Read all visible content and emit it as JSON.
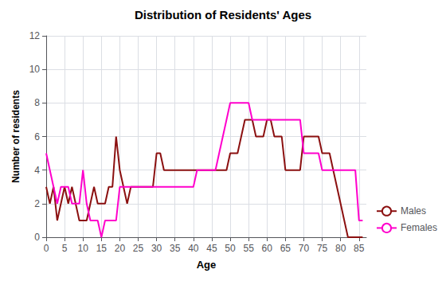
{
  "chart_data": {
    "type": "line",
    "title": "Distribution of Residents' Ages",
    "xlabel": "Age",
    "ylabel": "Number of residents",
    "x": [
      0,
      1,
      2,
      3,
      4,
      5,
      6,
      7,
      8,
      9,
      10,
      11,
      12,
      13,
      14,
      15,
      16,
      17,
      18,
      19,
      20,
      21,
      22,
      23,
      24,
      25,
      26,
      27,
      28,
      29,
      30,
      31,
      32,
      33,
      34,
      35,
      36,
      37,
      38,
      39,
      40,
      41,
      42,
      43,
      44,
      45,
      46,
      47,
      48,
      49,
      50,
      51,
      52,
      53,
      54,
      55,
      56,
      57,
      58,
      59,
      60,
      61,
      62,
      63,
      64,
      65,
      66,
      67,
      68,
      69,
      70,
      71,
      72,
      73,
      74,
      75,
      76,
      77,
      78,
      79,
      80,
      81,
      82,
      83,
      84,
      85,
      86
    ],
    "series": [
      {
        "name": "Males",
        "color": "#8B1010",
        "values": [
          3,
          2,
          3,
          1,
          2,
          3,
          2,
          3,
          2,
          1,
          1,
          1,
          2,
          3,
          2,
          2,
          2,
          3,
          3,
          6,
          4,
          3,
          2,
          3,
          3,
          3,
          3,
          3,
          3,
          3,
          5,
          5,
          4,
          4,
          4,
          4,
          4,
          4,
          4,
          4,
          4,
          4,
          4,
          4,
          4,
          4,
          4,
          4,
          4,
          4,
          5,
          5,
          5,
          6,
          7,
          7,
          7,
          6,
          6,
          6,
          7,
          7,
          6,
          6,
          6,
          4,
          4,
          4,
          4,
          4,
          6,
          6,
          6,
          6,
          6,
          5,
          5,
          5,
          4,
          3,
          2,
          1,
          0,
          0,
          0,
          0,
          0
        ]
      },
      {
        "name": "Females",
        "color": "#FF00CC",
        "values": [
          5,
          4,
          3,
          2,
          3,
          3,
          3,
          2,
          2,
          2,
          4,
          2,
          1,
          1,
          1,
          0,
          1,
          1,
          1,
          1,
          3,
          3,
          3,
          3,
          3,
          3,
          3,
          3,
          3,
          3,
          3,
          3,
          3,
          3,
          3,
          3,
          3,
          3,
          3,
          3,
          3,
          4,
          4,
          4,
          4,
          4,
          4,
          5,
          6,
          7,
          8,
          8,
          8,
          8,
          8,
          8,
          7,
          7,
          7,
          7,
          7,
          7,
          7,
          7,
          7,
          7,
          7,
          7,
          7,
          7,
          5,
          5,
          5,
          5,
          5,
          4,
          4,
          4,
          4,
          4,
          4,
          4,
          4,
          4,
          4,
          1,
          1
        ]
      }
    ],
    "xlim": [
      0,
      87
    ],
    "xticks": [
      0,
      5,
      10,
      15,
      20,
      25,
      30,
      35,
      40,
      45,
      50,
      55,
      60,
      65,
      70,
      75,
      80,
      85
    ],
    "ylim": [
      0,
      12
    ],
    "yticks": [
      0,
      2,
      4,
      6,
      8,
      10,
      12
    ],
    "grid": true,
    "legend": "lower right"
  }
}
